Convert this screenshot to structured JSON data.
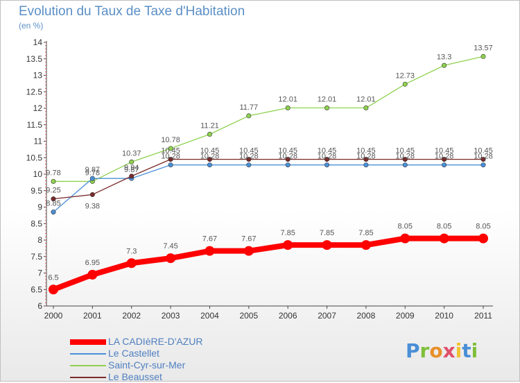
{
  "title": "Evolution du Taux de Taxe d'Habitation",
  "unit": "(en %)",
  "logo": {
    "text": "Proxiti",
    "letter_colors": [
      "#4a8fd6",
      "#7fbf3a",
      "#e8902a",
      "#e0506a",
      "#f2c230",
      "#4a8fd6",
      "#7fbf3a"
    ]
  },
  "chart_data": {
    "type": "line",
    "x": [
      "2000",
      "2001",
      "2002",
      "2003",
      "2004",
      "2005",
      "2006",
      "2007",
      "2008",
      "2009",
      "2010",
      "2011"
    ],
    "ylim": [
      6,
      14
    ],
    "yticks": [
      "6",
      "6.5",
      "7",
      "7.5",
      "8",
      "8.5",
      "9",
      "9.5",
      "10",
      "10.5",
      "11",
      "11.5",
      "12",
      "12.5",
      "13",
      "13.5",
      "14"
    ],
    "grid": false,
    "legend_position": "bottom-left",
    "series": [
      {
        "name": "LA CADIèRE-D'AZUR",
        "color": "#ff0000",
        "values": [
          6.5,
          6.95,
          7.3,
          7.45,
          7.67,
          7.67,
          7.85,
          7.85,
          7.85,
          8.05,
          8.05,
          8.05
        ],
        "labels": [
          "6.5",
          "6.95",
          "7.3",
          "7.45",
          "7.67",
          "7.67",
          "7.85",
          "7.85",
          "7.85",
          "8.05",
          "8.05",
          "8.05"
        ]
      },
      {
        "name": "Le Castellet",
        "color": "#4a90d9",
        "values": [
          8.85,
          9.87,
          9.87,
          10.28,
          10.28,
          10.28,
          10.28,
          10.28,
          10.28,
          10.28,
          10.28,
          10.28
        ],
        "labels": [
          "8.85",
          "9.87",
          "9.87",
          "10.28",
          "10.28",
          "10.28",
          "10.28",
          "10.28",
          "10.28",
          "10.28",
          "10.28",
          "10.28"
        ]
      },
      {
        "name": "Saint-Cyr-sur-Mer",
        "color": "#8fd14f",
        "values": [
          9.78,
          9.78,
          10.37,
          10.78,
          11.21,
          11.77,
          12.01,
          12.01,
          12.01,
          12.73,
          13.3,
          13.57
        ],
        "labels": [
          "9.78",
          "9.78",
          "10.37",
          "10.78",
          "11.21",
          "11.77",
          "12.01",
          "12.01",
          "12.01",
          "12.73",
          "13.3",
          "13.57"
        ]
      },
      {
        "name": "Le Beausset",
        "color": "#7a2a2a",
        "values": [
          9.25,
          9.38,
          9.94,
          10.45,
          10.45,
          10.45,
          10.45,
          10.45,
          10.45,
          10.45,
          10.45,
          10.45
        ],
        "labels": [
          "9.25",
          "9.38",
          "9.94",
          "10.45",
          "10.45",
          "10.45",
          "10.45",
          "10.45",
          "10.45",
          "10.45",
          "10.45",
          "10.45"
        ]
      }
    ]
  }
}
